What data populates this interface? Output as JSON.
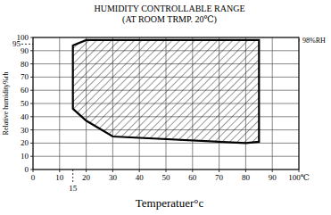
{
  "chart_data": {
    "type": "area",
    "title": "HUMIDITY CONTROLLABLE RANGE",
    "subtitle": "(AT ROOM TRMP. 20℃)",
    "x_label": "Temperatuer°c",
    "y_label": "Relative humidity%rh",
    "xlim": [
      0,
      100
    ],
    "ylim": [
      0,
      100
    ],
    "xticks": [
      0,
      10,
      20,
      30,
      40,
      50,
      60,
      70,
      80,
      90,
      {
        "value": 100,
        "label": "100℃"
      }
    ],
    "yticks": [
      0,
      10,
      20,
      30,
      40,
      50,
      60,
      70,
      80,
      90,
      100
    ],
    "grid": true,
    "color": "#000000",
    "series": [
      {
        "x": [
          15,
          15,
          20,
          85,
          85,
          80,
          30,
          20,
          15
        ],
        "values": [
          46,
          94,
          98,
          98,
          21,
          20,
          25,
          37,
          46
        ]
      }
    ],
    "annotations": [
      {
        "axis": "x",
        "value": 15
      },
      {
        "axis": "y",
        "value": 95
      },
      {
        "axis": "y",
        "value": 98,
        "label": "98%RH"
      }
    ]
  }
}
